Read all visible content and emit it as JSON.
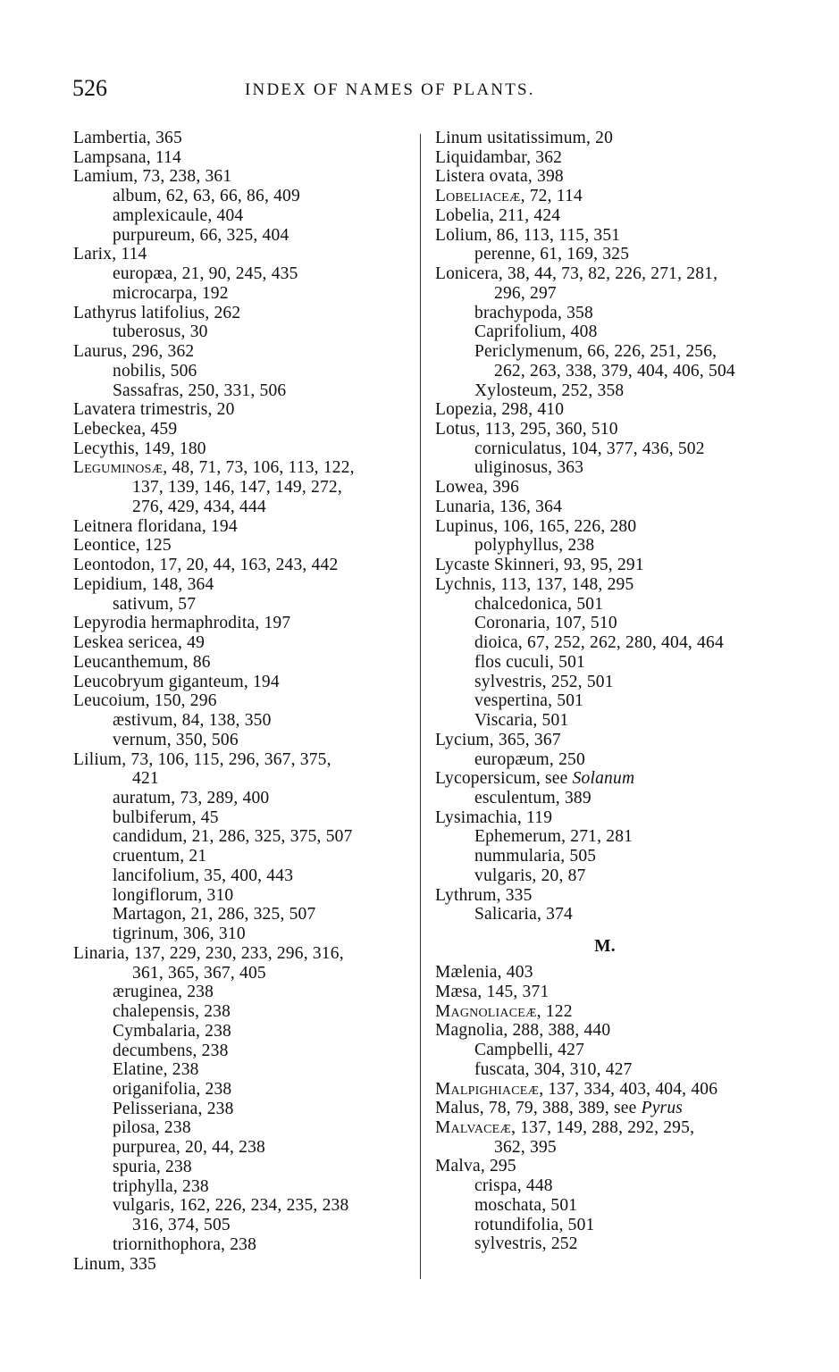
{
  "header": {
    "page_number": "526",
    "running_title": "INDEX OF NAMES OF PLANTS."
  },
  "left_column": [
    {
      "type": "main",
      "t": "Lambertia, 365"
    },
    {
      "type": "main",
      "t": "Lampsana, 114"
    },
    {
      "type": "main",
      "t": "Lamium, 73, 238, 361"
    },
    {
      "type": "sub",
      "t": "album, 62, 63, 66, 86, 409"
    },
    {
      "type": "sub",
      "t": "amplexicaule, 404"
    },
    {
      "type": "sub",
      "t": "purpureum, 66, 325, 404"
    },
    {
      "type": "main",
      "t": "Larix, 114"
    },
    {
      "type": "sub",
      "t": "europæa, 21, 90, 245, 435"
    },
    {
      "type": "sub",
      "t": "microcarpa, 192"
    },
    {
      "type": "main",
      "t": "Lathyrus latifolius, 262"
    },
    {
      "type": "sub",
      "t": "tuberosus, 30"
    },
    {
      "type": "main",
      "t": "Laurus, 296, 362"
    },
    {
      "type": "sub",
      "t": "nobilis, 506"
    },
    {
      "type": "sub",
      "t": "Sassafras, 250, 331, 506"
    },
    {
      "type": "main",
      "t": "Lavatera trimestris, 20"
    },
    {
      "type": "main",
      "t": "Lebeckea, 459"
    },
    {
      "type": "main",
      "t": "Lecythis, 149, 180"
    },
    {
      "type": "main",
      "sc": "Leguminosæ",
      "t": ", 48, 71, 73, 106, 113, 122,"
    },
    {
      "type": "cont",
      "t": "137, 139, 146, 147, 149, 272,"
    },
    {
      "type": "cont",
      "t": "276, 429, 434, 444"
    },
    {
      "type": "main",
      "t": "Leitnera floridana, 194"
    },
    {
      "type": "main",
      "t": "Leontice, 125"
    },
    {
      "type": "main",
      "t": "Leontodon, 17, 20, 44, 163, 243, 442"
    },
    {
      "type": "main",
      "t": "Lepidium, 148, 364"
    },
    {
      "type": "sub",
      "t": "sativum, 57"
    },
    {
      "type": "main",
      "t": "Lepyrodia hermaphrodita, 197"
    },
    {
      "type": "main",
      "t": "Leskea sericea, 49"
    },
    {
      "type": "main",
      "t": "Leucanthemum, 86"
    },
    {
      "type": "main",
      "t": "Leucobryum giganteum, 194"
    },
    {
      "type": "main",
      "t": "Leucoium, 150, 296"
    },
    {
      "type": "sub",
      "t": "æstivum, 84, 138, 350"
    },
    {
      "type": "sub",
      "t": "vernum, 350, 506"
    },
    {
      "type": "main",
      "t": "Lilium, 73, 106, 115, 296, 367, 375,"
    },
    {
      "type": "cont",
      "t": "421"
    },
    {
      "type": "sub",
      "t": "auratum, 73, 289, 400"
    },
    {
      "type": "sub",
      "t": "bulbiferum, 45"
    },
    {
      "type": "sub",
      "t": "candidum, 21, 286, 325, 375, 507"
    },
    {
      "type": "sub",
      "t": "cruentum, 21"
    },
    {
      "type": "sub",
      "t": "lancifolium, 35, 400, 443"
    },
    {
      "type": "sub",
      "t": "longiflorum, 310"
    },
    {
      "type": "sub",
      "t": "Martagon, 21, 286, 325, 507"
    },
    {
      "type": "sub",
      "t": "tigrinum, 306, 310"
    },
    {
      "type": "main",
      "t": "Linaria, 137, 229, 230, 233, 296, 316,"
    },
    {
      "type": "cont",
      "t": "361, 365, 367, 405"
    },
    {
      "type": "sub",
      "t": "æruginea, 238"
    },
    {
      "type": "sub",
      "t": "chalepensis, 238"
    },
    {
      "type": "sub",
      "t": "Cymbalaria, 238"
    },
    {
      "type": "sub",
      "t": "decumbens, 238"
    },
    {
      "type": "sub",
      "t": "Elatine, 238"
    },
    {
      "type": "sub",
      "t": "origanifolia, 238"
    },
    {
      "type": "sub",
      "t": "Pelisseriana, 238"
    },
    {
      "type": "sub",
      "t": "pilosa, 238"
    },
    {
      "type": "sub",
      "t": "purpurea, 20, 44, 238"
    },
    {
      "type": "sub",
      "t": "spuria, 238"
    },
    {
      "type": "sub",
      "t": "triphylla, 238"
    },
    {
      "type": "sub",
      "t": "vulgaris, 162, 226, 234, 235, 238"
    },
    {
      "type": "cont",
      "t": "316, 374, 505"
    },
    {
      "type": "sub",
      "t": "triornithophora, 238"
    },
    {
      "type": "main",
      "t": "Linum, 335"
    }
  ],
  "right_column": [
    {
      "type": "main",
      "t": "Linum usitatissimum, 20"
    },
    {
      "type": "main",
      "t": "Liquidambar, 362"
    },
    {
      "type": "main",
      "t": "Listera ovata, 398"
    },
    {
      "type": "main",
      "sc": "Lobeliaceæ",
      "t": ", 72, 114"
    },
    {
      "type": "main",
      "t": "Lobelia, 211, 424"
    },
    {
      "type": "main",
      "t": "Lolium, 86, 113, 115, 351"
    },
    {
      "type": "sub",
      "t": "perenne, 61, 169, 325"
    },
    {
      "type": "main",
      "t": "Lonicera, 38, 44, 73, 82, 226, 271, 281,"
    },
    {
      "type": "cont",
      "t": "296, 297"
    },
    {
      "type": "sub",
      "t": "brachypoda, 358"
    },
    {
      "type": "sub",
      "t": "Caprifolium, 408"
    },
    {
      "type": "sub",
      "t": "Periclymenum, 66, 226, 251, 256,"
    },
    {
      "type": "cont",
      "t": "262, 263, 338, 379, 404, 406, 504"
    },
    {
      "type": "sub",
      "t": "Xylosteum, 252, 358"
    },
    {
      "type": "main",
      "t": "Lopezia, 298, 410"
    },
    {
      "type": "main",
      "t": "Lotus, 113, 295, 360, 510"
    },
    {
      "type": "sub",
      "t": "corniculatus, 104, 377, 436, 502"
    },
    {
      "type": "sub",
      "t": "uliginosus, 363"
    },
    {
      "type": "main",
      "t": "Lowea, 396"
    },
    {
      "type": "main",
      "t": "Lunaria, 136, 364"
    },
    {
      "type": "main",
      "t": "Lupinus, 106, 165, 226, 280"
    },
    {
      "type": "sub",
      "t": "polyphyllus, 238"
    },
    {
      "type": "main",
      "t": "Lycaste Skinneri, 93, 95, 291"
    },
    {
      "type": "main",
      "t": "Lychnis, 113, 137, 148, 295"
    },
    {
      "type": "sub",
      "t": "chalcedonica, 501"
    },
    {
      "type": "sub",
      "t": "Coronaria, 107, 510"
    },
    {
      "type": "sub",
      "t": "dioica, 67, 252, 262, 280, 404, 464"
    },
    {
      "type": "sub",
      "t": "flos cuculi, 501"
    },
    {
      "type": "sub",
      "t": "sylvestris, 252, 501"
    },
    {
      "type": "sub",
      "t": "vespertina, 501"
    },
    {
      "type": "sub",
      "t": "Viscaria, 501"
    },
    {
      "type": "main",
      "t": "Lycium, 365, 367"
    },
    {
      "type": "sub",
      "t": "europæum, 250"
    },
    {
      "type": "main",
      "t": "Lycopersicum, see ",
      "it": "Solanum"
    },
    {
      "type": "sub",
      "t": "esculentum, 389"
    },
    {
      "type": "main",
      "t": "Lysimachia, 119"
    },
    {
      "type": "sub",
      "t": "Ephemerum, 271, 281"
    },
    {
      "type": "sub",
      "t": "nummularia, 505"
    },
    {
      "type": "sub",
      "t": "vulgaris, 20, 87"
    },
    {
      "type": "main",
      "t": "Lythrum, 335"
    },
    {
      "type": "sub",
      "t": "Salicaria, 374"
    },
    {
      "type": "head",
      "t": "M."
    },
    {
      "type": "main",
      "t": "Mælenia, 403"
    },
    {
      "type": "main",
      "t": "Mæsa, 145, 371"
    },
    {
      "type": "main",
      "sc": "Magnoliaceæ",
      "t": ", 122"
    },
    {
      "type": "main",
      "t": "Magnolia, 288, 388, 440"
    },
    {
      "type": "sub",
      "t": "Campbelli, 427"
    },
    {
      "type": "sub",
      "t": "fuscata, 304, 310, 427"
    },
    {
      "type": "main",
      "sc": "Malpighiaceæ",
      "t": ", 137, 334, 403, 404, 406"
    },
    {
      "type": "main",
      "t": "Malus, 78, 79, 388, 389, see ",
      "it": "Pyrus"
    },
    {
      "type": "main",
      "sc": "Malvaceæ",
      "t": ", 137, 149, 288, 292, 295,"
    },
    {
      "type": "cont",
      "t": "362, 395"
    },
    {
      "type": "main",
      "t": "Malva, 295"
    },
    {
      "type": "sub",
      "t": "crispa, 448"
    },
    {
      "type": "sub",
      "t": "moschata, 501"
    },
    {
      "type": "sub",
      "t": "rotundifolia, 501"
    },
    {
      "type": "sub",
      "t": "sylvestris, 252"
    }
  ]
}
